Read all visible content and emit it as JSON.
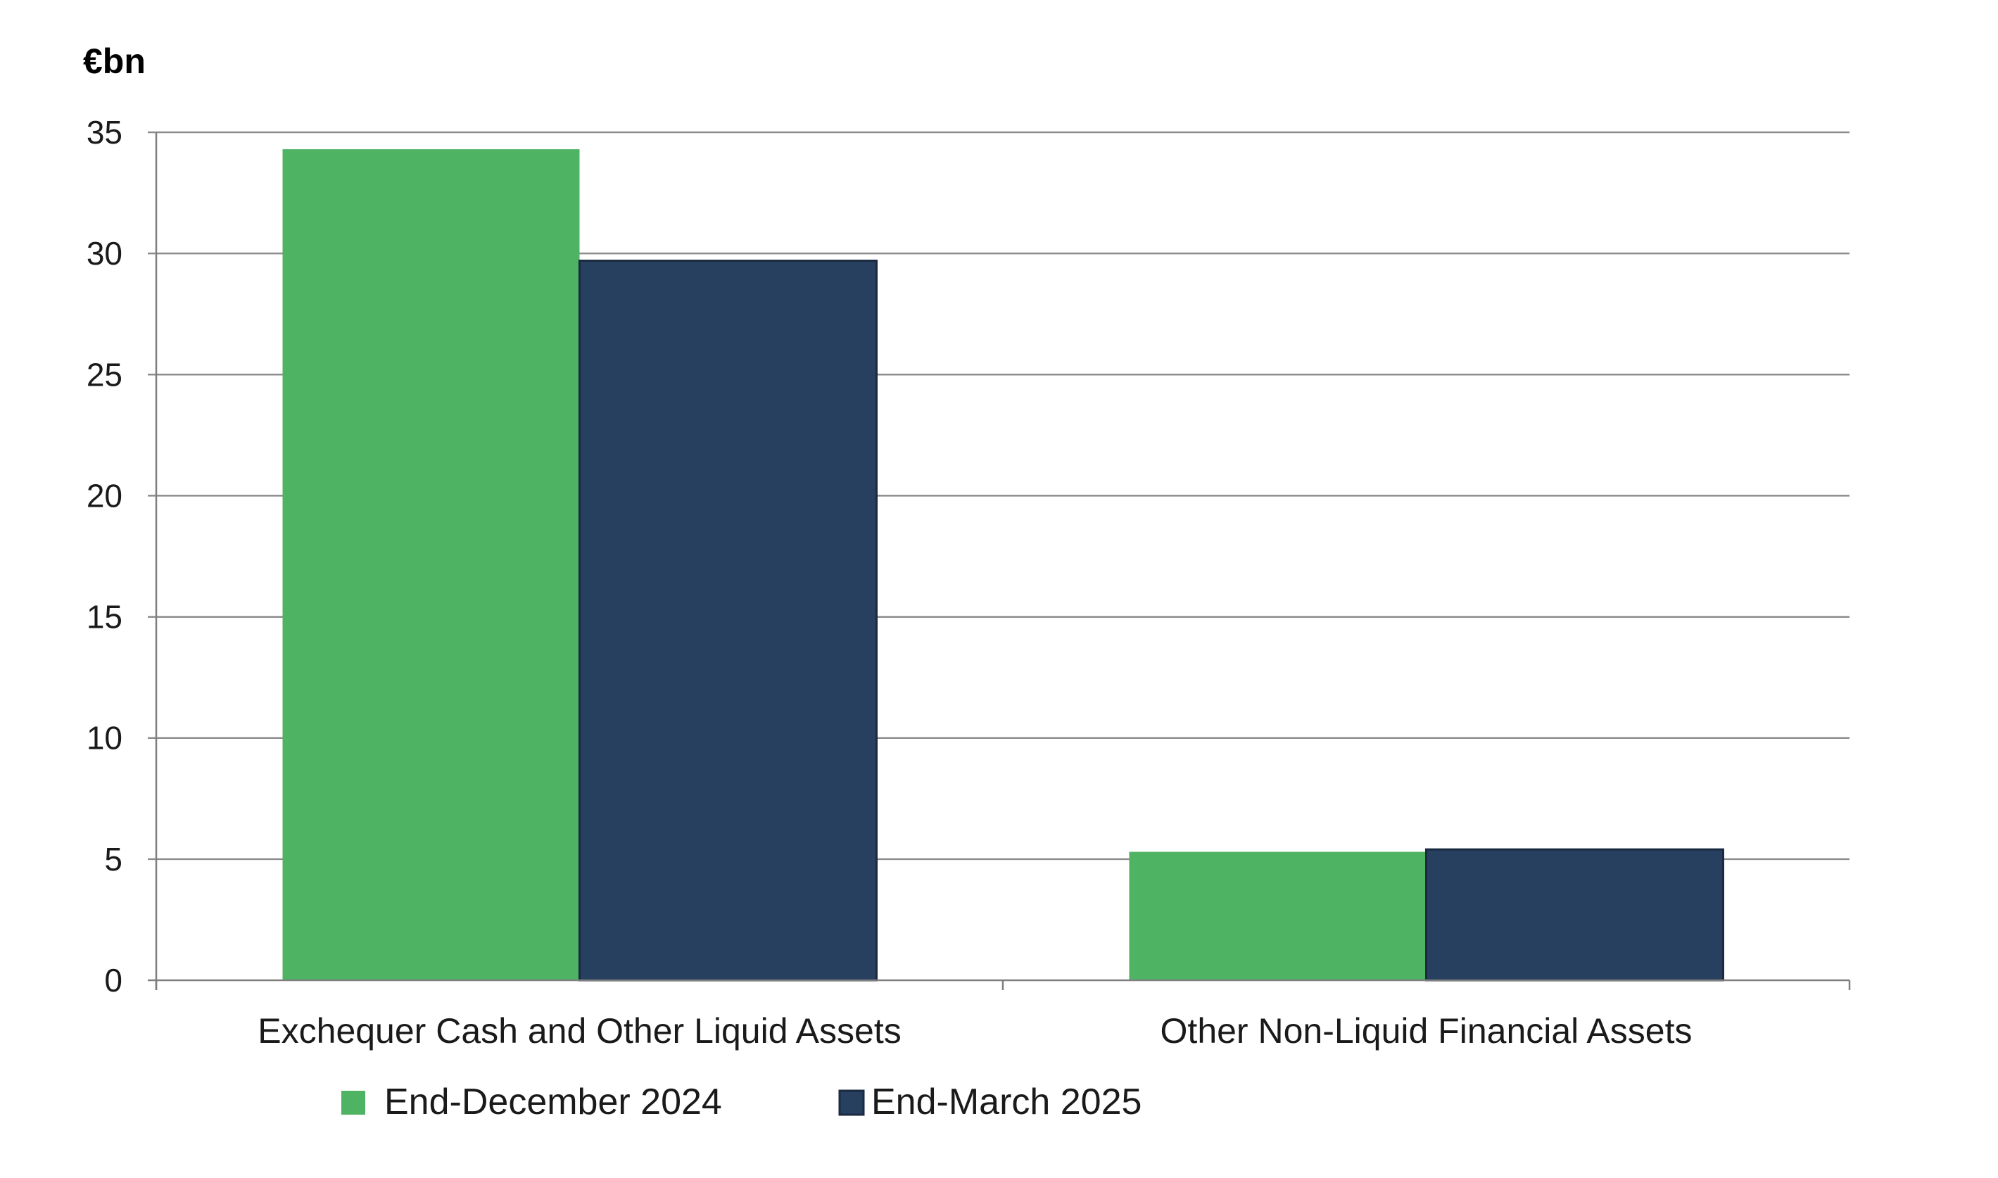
{
  "chart_data": {
    "type": "bar",
    "unit_label": "€bn",
    "title": "",
    "xlabel": "",
    "ylabel": "",
    "categories": [
      "Exchequer Cash and Other Liquid Assets",
      "Other Non-Liquid Financial Assets"
    ],
    "series": [
      {
        "name": "End-December 2024",
        "values": [
          34.3,
          5.3
        ],
        "color": "#4eb362"
      },
      {
        "name": "End-March 2025",
        "values": [
          29.7,
          5.4
        ],
        "color": "#274060"
      }
    ],
    "ylim": [
      0,
      35
    ],
    "yticks": [
      0,
      5,
      10,
      15,
      20,
      25,
      30,
      35
    ],
    "grid": true,
    "legend_position": "bottom"
  },
  "colors": {
    "gridline": "#8c8c8c",
    "axis": "#7f7f7f",
    "bar_outline": "#1a2a40"
  }
}
